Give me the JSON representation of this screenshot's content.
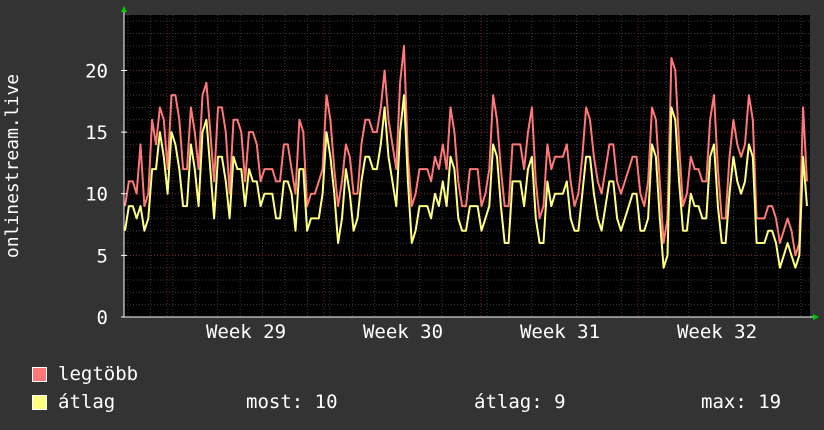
{
  "chart_data": {
    "type": "line",
    "ylabel": "onlinestream.live",
    "ylim": [
      0,
      24.5
    ],
    "yticks": [
      0,
      5,
      10,
      15,
      20
    ],
    "x_tick_labels": [
      "Week 29",
      "Week 30",
      "Week 31",
      "Week 32"
    ],
    "grid": true,
    "legend_placement": "bottom-left",
    "background": "#000000",
    "series": [
      {
        "name": "legtöbb",
        "color": "#ff7777",
        "values": [
          9,
          11,
          11,
          10,
          14,
          9,
          10,
          16,
          14,
          17,
          16,
          12,
          18,
          18,
          16,
          12,
          12,
          17,
          15,
          12,
          18,
          19,
          15,
          11,
          17,
          17,
          15,
          10,
          16,
          16,
          15,
          11,
          15,
          15,
          14,
          11,
          12,
          12,
          12,
          11,
          11,
          14,
          14,
          12,
          10,
          16,
          15,
          9,
          10,
          10,
          11,
          12,
          18,
          16,
          12,
          9,
          11,
          14,
          13,
          10,
          10,
          14,
          16,
          16,
          15,
          15,
          17,
          20,
          16,
          14,
          12,
          19,
          22,
          13,
          9,
          10,
          12,
          12,
          12,
          11,
          13,
          12,
          14,
          12,
          17,
          15,
          11,
          9,
          9,
          12,
          12,
          12,
          9,
          10,
          12,
          18,
          16,
          12,
          9,
          9,
          14,
          14,
          14,
          12,
          15,
          17,
          11,
          8,
          9,
          14,
          12,
          13,
          13,
          13,
          14,
          11,
          9,
          10,
          13,
          17,
          16,
          13,
          11,
          10,
          12,
          14,
          14,
          11,
          10,
          11,
          12,
          13,
          13,
          10,
          9,
          11,
          17,
          16,
          11,
          6,
          8,
          21,
          20,
          14,
          9,
          10,
          13,
          12,
          12,
          11,
          11,
          16,
          18,
          12,
          8,
          8,
          13,
          16,
          14,
          13,
          14,
          18,
          16,
          8,
          8,
          8,
          9,
          9,
          8,
          6,
          7,
          8,
          7,
          5,
          6,
          17,
          11
        ]
      },
      {
        "name": "átlag",
        "color": "#ffff80",
        "values": [
          7,
          9,
          9,
          8,
          9,
          7,
          8,
          12,
          12,
          15,
          13,
          10,
          15,
          14,
          12,
          9,
          9,
          14,
          12,
          9,
          15,
          16,
          12,
          8,
          13,
          13,
          11,
          8,
          13,
          12,
          12,
          9,
          12,
          11,
          11,
          9,
          10,
          10,
          10,
          8,
          8,
          11,
          11,
          10,
          7,
          12,
          12,
          7,
          8,
          8,
          8,
          10,
          15,
          13,
          10,
          6,
          8,
          12,
          10,
          7,
          8,
          11,
          13,
          13,
          12,
          12,
          14,
          17,
          13,
          11,
          9,
          15,
          18,
          11,
          6,
          7,
          9,
          9,
          9,
          8,
          10,
          9,
          11,
          9,
          13,
          12,
          8,
          7,
          7,
          9,
          9,
          9,
          7,
          8,
          9,
          14,
          13,
          9,
          6,
          6,
          11,
          11,
          11,
          9,
          12,
          13,
          8,
          6,
          6,
          11,
          9,
          10,
          10,
          10,
          11,
          8,
          7,
          7,
          10,
          13,
          13,
          10,
          8,
          7,
          9,
          11,
          11,
          8,
          7,
          8,
          9,
          10,
          10,
          7,
          7,
          8,
          14,
          13,
          8,
          4,
          5,
          17,
          16,
          11,
          7,
          7,
          10,
          9,
          9,
          8,
          8,
          13,
          14,
          9,
          6,
          6,
          10,
          13,
          11,
          10,
          11,
          14,
          13,
          6,
          6,
          6,
          7,
          7,
          6,
          4,
          5,
          6,
          5,
          4,
          5,
          13,
          9
        ]
      }
    ]
  },
  "legend": [
    {
      "label": "legtöbb",
      "color": "#ff7777"
    },
    {
      "label": "átlag",
      "color": "#ffff80"
    }
  ],
  "stats": {
    "now": "most: 10",
    "avg": "átlag: 9",
    "max": "max: 19"
  }
}
